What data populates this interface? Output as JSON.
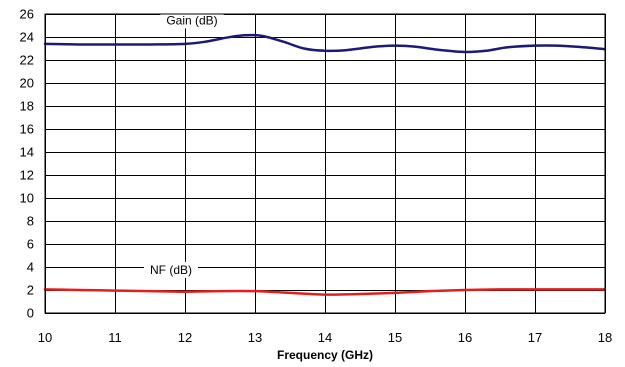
{
  "chart_data": {
    "type": "line",
    "title": "",
    "xlabel": "Frequency (GHz)",
    "ylabel": "",
    "xlim": [
      10,
      18
    ],
    "ylim": [
      0,
      26
    ],
    "xticks": [
      "10",
      "11",
      "12",
      "13",
      "14",
      "15",
      "16",
      "17",
      "18"
    ],
    "yticks": [
      "0",
      "2",
      "4",
      "6",
      "8",
      "10",
      "12",
      "14",
      "16",
      "18",
      "20",
      "22",
      "24",
      "26"
    ],
    "grid": true,
    "series": [
      {
        "name": "Gain (dB)",
        "color": "#1a1a7a",
        "label_x": 12.1,
        "label_y": 25.1,
        "x": [
          10,
          10.5,
          11,
          11.5,
          12,
          12.3,
          12.6,
          12.85,
          13.1,
          13.4,
          13.7,
          14,
          14.3,
          14.7,
          15,
          15.3,
          15.6,
          16,
          16.3,
          16.6,
          17,
          17.3,
          17.6,
          18
        ],
        "y": [
          23.4,
          23.35,
          23.35,
          23.35,
          23.4,
          23.6,
          23.95,
          24.15,
          24.1,
          23.6,
          23.0,
          22.8,
          22.85,
          23.15,
          23.25,
          23.15,
          22.9,
          22.7,
          22.8,
          23.1,
          23.25,
          23.25,
          23.15,
          22.95
        ]
      },
      {
        "name": "NF (dB)",
        "color": "#e02020",
        "label_x": 11.8,
        "label_y": 3.4,
        "x": [
          10,
          10.5,
          11,
          11.5,
          12,
          12.5,
          13,
          13.5,
          14,
          14.5,
          15,
          15.5,
          16,
          16.5,
          17,
          17.5,
          18
        ],
        "y": [
          2.05,
          2.0,
          1.95,
          1.9,
          1.85,
          1.9,
          1.9,
          1.75,
          1.6,
          1.65,
          1.75,
          1.9,
          2.0,
          2.05,
          2.05,
          2.05,
          2.05
        ]
      }
    ]
  }
}
